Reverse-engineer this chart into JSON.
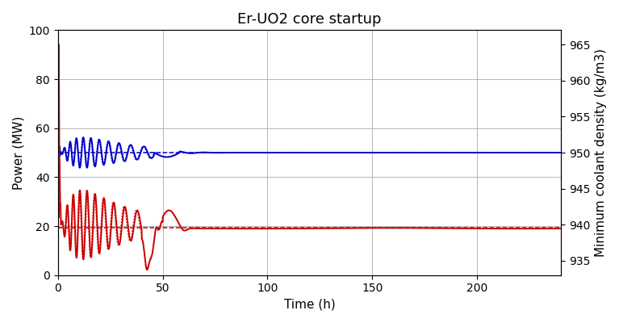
{
  "title": "Er-UO2 core startup",
  "xlabel": "Time (h)",
  "ylabel_left": "Power (MW)",
  "ylabel_right": "Minimum coolant density (kg/m3)",
  "xlim": [
    0,
    240
  ],
  "ylim_left": [
    0,
    100
  ],
  "ylim_right": [
    933,
    967
  ],
  "power_ref": 50.0,
  "density_ref_power": 19.3,
  "color_blue": "#0000cc",
  "color_red": "#cc0000",
  "grid_color": "#aaaaaa",
  "background": "#ffffff"
}
